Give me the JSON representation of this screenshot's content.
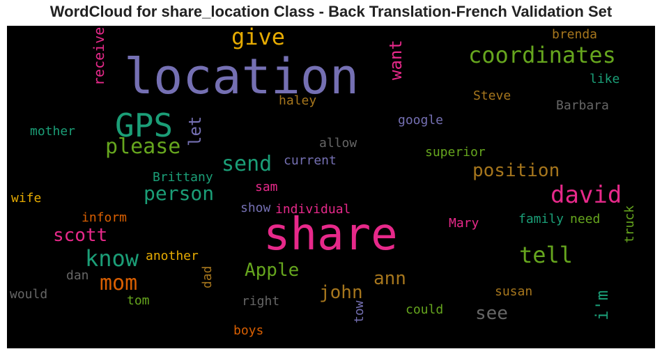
{
  "chart_data": {
    "type": "wordcloud",
    "title": "WordCloud for share_location Class - Back Translation-French Validation Set",
    "background": "#000000",
    "words": [
      {
        "text": "location",
        "color": "#7570b3",
        "orientation": "horizontal"
      },
      {
        "text": "share",
        "color": "#e7298a",
        "orientation": "horizontal"
      },
      {
        "text": "GPS",
        "color": "#1b9e77",
        "orientation": "horizontal"
      },
      {
        "text": "coordinates",
        "color": "#66a61e",
        "orientation": "horizontal"
      },
      {
        "text": "give",
        "color": "#e6ab02",
        "orientation": "horizontal"
      },
      {
        "text": "please",
        "color": "#66a61e",
        "orientation": "horizontal"
      },
      {
        "text": "send",
        "color": "#1b9e77",
        "orientation": "horizontal"
      },
      {
        "text": "david",
        "color": "#e7298a",
        "orientation": "horizontal"
      },
      {
        "text": "position",
        "color": "#a6761d",
        "orientation": "horizontal"
      },
      {
        "text": "person",
        "color": "#1b9e77",
        "orientation": "horizontal"
      },
      {
        "text": "tell",
        "color": "#66a61e",
        "orientation": "horizontal"
      },
      {
        "text": "know",
        "color": "#1b9e77",
        "orientation": "horizontal"
      },
      {
        "text": "mom",
        "color": "#d95f02",
        "orientation": "horizontal"
      },
      {
        "text": "scott",
        "color": "#e7298a",
        "orientation": "horizontal"
      },
      {
        "text": "Apple",
        "color": "#66a61e",
        "orientation": "horizontal"
      },
      {
        "text": "john",
        "color": "#a6761d",
        "orientation": "horizontal"
      },
      {
        "text": "ann",
        "color": "#a6761d",
        "orientation": "horizontal"
      },
      {
        "text": "see",
        "color": "#666666",
        "orientation": "horizontal"
      },
      {
        "text": "want",
        "color": "#e7298a",
        "orientation": "vertical"
      },
      {
        "text": "let",
        "color": "#7570b3",
        "orientation": "vertical"
      },
      {
        "text": "i'm",
        "color": "#1b9e77",
        "orientation": "vertical"
      },
      {
        "text": "receive",
        "color": "#e7298a",
        "orientation": "vertical"
      },
      {
        "text": "brenda",
        "color": "#a6761d",
        "orientation": "horizontal"
      },
      {
        "text": "like",
        "color": "#1b9e77",
        "orientation": "horizontal"
      },
      {
        "text": "Steve",
        "color": "#a6761d",
        "orientation": "horizontal"
      },
      {
        "text": "haley",
        "color": "#a6761d",
        "orientation": "horizontal"
      },
      {
        "text": "Barbara",
        "color": "#666666",
        "orientation": "horizontal"
      },
      {
        "text": "google",
        "color": "#7570b3",
        "orientation": "horizontal"
      },
      {
        "text": "mother",
        "color": "#1b9e77",
        "orientation": "horizontal"
      },
      {
        "text": "allow",
        "color": "#666666",
        "orientation": "horizontal"
      },
      {
        "text": "superior",
        "color": "#66a61e",
        "orientation": "horizontal"
      },
      {
        "text": "current",
        "color": "#7570b3",
        "orientation": "horizontal"
      },
      {
        "text": "Brittany",
        "color": "#1b9e77",
        "orientation": "horizontal"
      },
      {
        "text": "sam",
        "color": "#e7298a",
        "orientation": "horizontal"
      },
      {
        "text": "wife",
        "color": "#e6ab02",
        "orientation": "horizontal"
      },
      {
        "text": "show",
        "color": "#7570b3",
        "orientation": "horizontal"
      },
      {
        "text": "individual",
        "color": "#e7298a",
        "orientation": "horizontal"
      },
      {
        "text": "inform",
        "color": "#d95f02",
        "orientation": "horizontal"
      },
      {
        "text": "Mary",
        "color": "#e7298a",
        "orientation": "horizontal"
      },
      {
        "text": "family",
        "color": "#1b9e77",
        "orientation": "horizontal"
      },
      {
        "text": "need",
        "color": "#66a61e",
        "orientation": "horizontal"
      },
      {
        "text": "truck",
        "color": "#66a61e",
        "orientation": "vertical"
      },
      {
        "text": "another",
        "color": "#e6ab02",
        "orientation": "horizontal"
      },
      {
        "text": "dad",
        "color": "#a6761d",
        "orientation": "vertical"
      },
      {
        "text": "dan",
        "color": "#666666",
        "orientation": "horizontal"
      },
      {
        "text": "would",
        "color": "#666666",
        "orientation": "horizontal"
      },
      {
        "text": "tom",
        "color": "#66a61e",
        "orientation": "horizontal"
      },
      {
        "text": "right",
        "color": "#666666",
        "orientation": "horizontal"
      },
      {
        "text": "tow",
        "color": "#7570b3",
        "orientation": "vertical"
      },
      {
        "text": "could",
        "color": "#66a61e",
        "orientation": "horizontal"
      },
      {
        "text": "susan",
        "color": "#a6761d",
        "orientation": "horizontal"
      },
      {
        "text": "boys",
        "color": "#d95f02",
        "orientation": "horizontal"
      }
    ]
  }
}
